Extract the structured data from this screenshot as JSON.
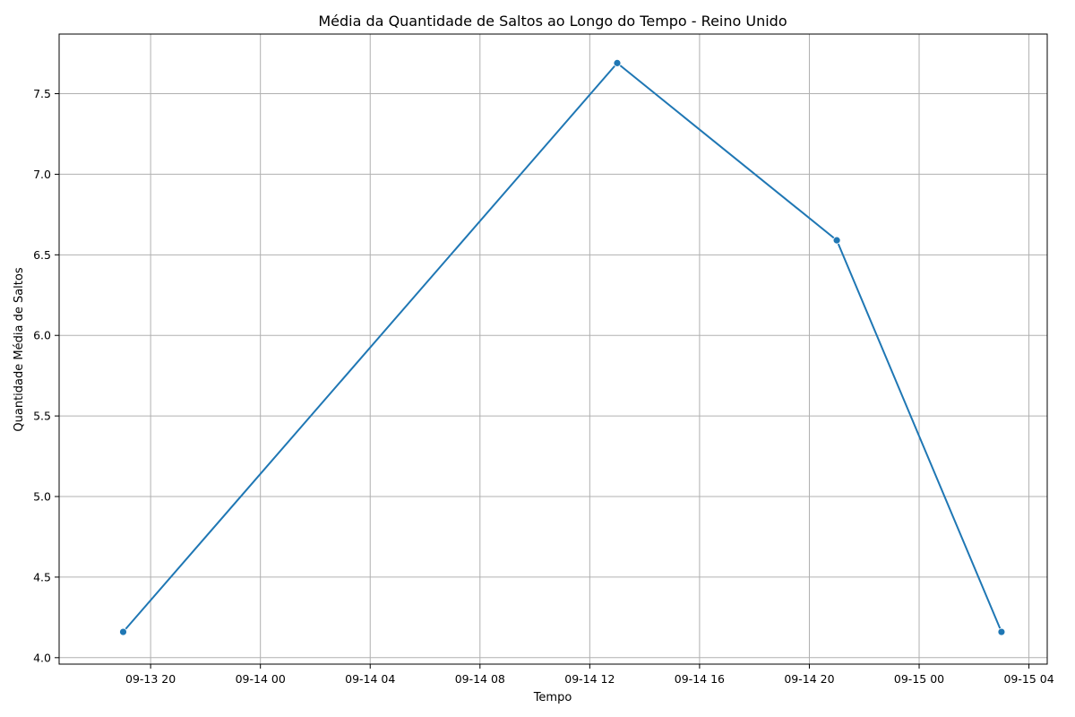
{
  "chart_data": {
    "type": "line",
    "title": "Média da Quantidade de Saltos ao Longo do Tempo - Reino Unido",
    "xlabel": "Tempo",
    "ylabel": "Quantidade Média de Saltos",
    "x_axis_type": "datetime",
    "xlim": [
      "2024-09-13 16:40",
      "2024-09-15 04:40"
    ],
    "ylim": [
      3.96,
      7.87
    ],
    "x_ticks": [
      {
        "value": "2024-09-13 20:00",
        "label": "09-13 20"
      },
      {
        "value": "2024-09-14 00:00",
        "label": "09-14 00"
      },
      {
        "value": "2024-09-14 04:00",
        "label": "09-14 04"
      },
      {
        "value": "2024-09-14 08:00",
        "label": "09-14 08"
      },
      {
        "value": "2024-09-14 12:00",
        "label": "09-14 12"
      },
      {
        "value": "2024-09-14 16:00",
        "label": "09-14 16"
      },
      {
        "value": "2024-09-14 20:00",
        "label": "09-14 20"
      },
      {
        "value": "2024-09-15 00:00",
        "label": "09-15 00"
      },
      {
        "value": "2024-09-15 04:00",
        "label": "09-15 04"
      }
    ],
    "y_ticks": [
      {
        "value": 4.0,
        "label": "4.0"
      },
      {
        "value": 4.5,
        "label": "4.5"
      },
      {
        "value": 5.0,
        "label": "5.0"
      },
      {
        "value": 5.5,
        "label": "5.5"
      },
      {
        "value": 6.0,
        "label": "6.0"
      },
      {
        "value": 6.5,
        "label": "6.5"
      },
      {
        "value": 7.0,
        "label": "7.0"
      },
      {
        "value": 7.5,
        "label": "7.5"
      }
    ],
    "grid": true,
    "series": [
      {
        "color": "#1f77b4",
        "marker": "circle",
        "points": [
          {
            "x": "2024-09-13 19:00",
            "y": 4.16
          },
          {
            "x": "2024-09-14 13:00",
            "y": 7.69
          },
          {
            "x": "2024-09-14 21:00",
            "y": 6.59
          },
          {
            "x": "2024-09-15 03:00",
            "y": 4.16
          }
        ]
      }
    ]
  }
}
